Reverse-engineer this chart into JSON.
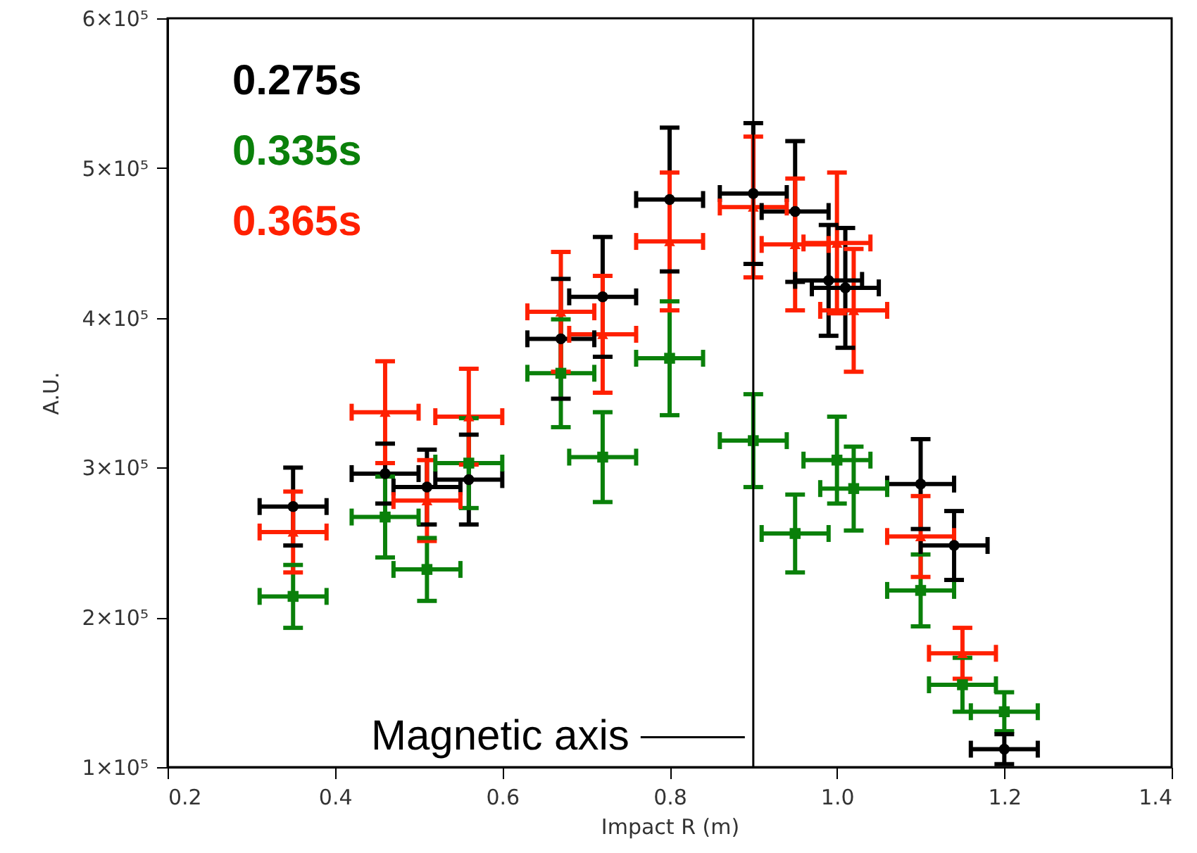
{
  "chart_data": {
    "type": "scatter",
    "xlabel": "Impact R (m)",
    "ylabel": "A.U.",
    "x": [
      0.35,
      0.46,
      0.51,
      0.56,
      0.67,
      0.72,
      0.8,
      0.9,
      0.95,
      0.99,
      1.01,
      1.1,
      1.14,
      1.2
    ],
    "xlim": [
      0.2,
      1.4
    ],
    "xticks": [
      0.2,
      0.4,
      0.6,
      0.8,
      {
        "value": 1,
        "label": "1.0"
      },
      1.2,
      1.4
    ],
    "ylim": [
      100000,
      600000
    ],
    "yticks": [
      {
        "value": 100000,
        "label": "1×10⁵"
      },
      {
        "value": 200000,
        "label": "2×10⁵"
      },
      {
        "value": 300000,
        "label": "3×10⁵"
      },
      {
        "value": 400000,
        "label": "4×10⁵"
      },
      {
        "value": 500000,
        "label": "5×10⁵"
      },
      {
        "value": 600000,
        "label": "6×10⁵"
      }
    ],
    "legend": "top left",
    "grid": false,
    "series": [
      {
        "name": "0.275s",
        "color": "#000000",
        "marker": "circle",
        "values": [
          274000,
          296000,
          287000,
          292000,
          386000,
          414000,
          479000,
          483000,
          471000,
          425000,
          420000,
          289000,
          248000,
          112000
        ],
        "errors": [
          26000,
          20000,
          25000,
          30000,
          40000,
          40000,
          48000,
          47000,
          47000,
          37000,
          40000,
          30000,
          23000,
          10000
        ],
        "xerrors": [
          0.04,
          0.04,
          0.04,
          0.04,
          0.04,
          0.04,
          0.04,
          0.04,
          0.04,
          0.04,
          0.04,
          0.04,
          0.04,
          0.04
        ]
      },
      {
        "name": "0.335s",
        "color": "#0a800a",
        "marker": "square",
        "x": [
          0.35,
          0.46,
          0.51,
          0.56,
          0.67,
          0.72,
          0.8,
          0.9,
          0.95,
          1.0,
          1.02,
          1.1,
          1.15,
          1.2
        ],
        "values": [
          214000,
          267000,
          232000,
          303000,
          363000,
          307000,
          373000,
          318000,
          256000,
          305000,
          286000,
          218000,
          155000,
          137000
        ],
        "errors": [
          21000,
          27000,
          21000,
          30000,
          36000,
          30000,
          38000,
          31000,
          26000,
          29000,
          28000,
          24000,
          18000,
          13000
        ],
        "xerrors": [
          0.04,
          0.04,
          0.04,
          0.04,
          0.04,
          0.04,
          0.04,
          0.04,
          0.04,
          0.04,
          0.04,
          0.04,
          0.04,
          0.04
        ]
      },
      {
        "name": "0.365s",
        "color": "#ff2000",
        "marker": "triangle",
        "x": [
          0.35,
          0.46,
          0.51,
          0.56,
          0.67,
          0.72,
          0.8,
          0.9,
          0.95,
          1.0,
          1.02,
          1.1,
          1.15
        ],
        "values": [
          257000,
          337000,
          278000,
          334000,
          404000,
          389000,
          451000,
          474000,
          449000,
          450000,
          405000,
          254000,
          176000
        ],
        "errors": [
          27000,
          34000,
          27000,
          32000,
          40000,
          39000,
          46000,
          47000,
          44000,
          47000,
          41000,
          27000,
          17000
        ],
        "xerrors": [
          0.04,
          0.04,
          0.04,
          0.04,
          0.04,
          0.04,
          0.04,
          0.04,
          0.04,
          0.04,
          0.04,
          0.04,
          0.04
        ]
      }
    ],
    "ref_lines": [
      {
        "axis": "x",
        "value": 0.9
      }
    ],
    "annotations": [
      {
        "text": "Magnetic axis",
        "x": 0.9,
        "y": 120000
      }
    ]
  }
}
